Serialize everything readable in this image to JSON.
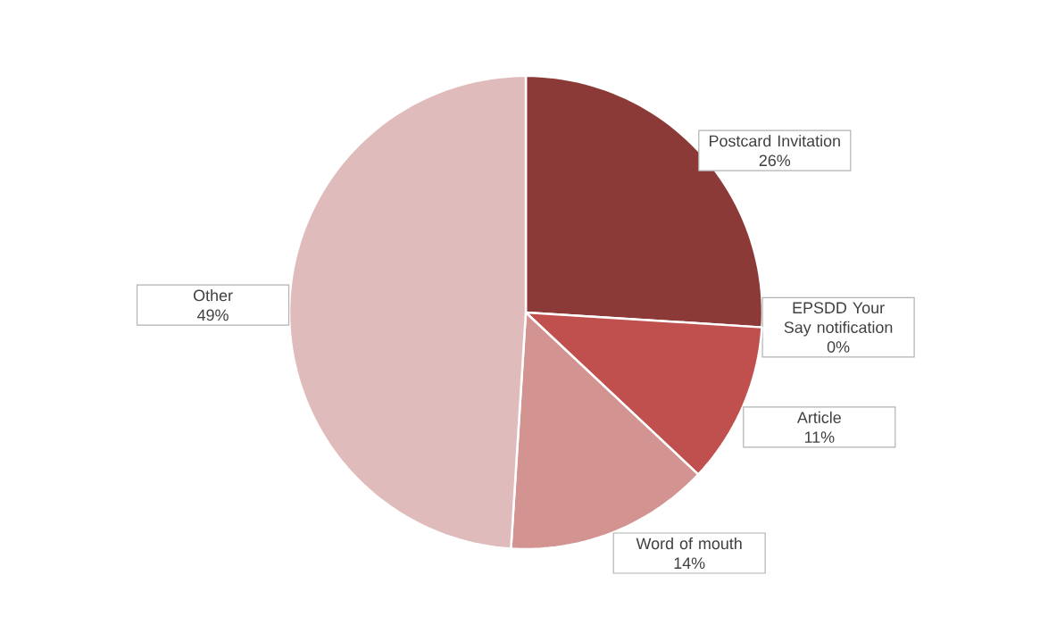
{
  "chart_data": {
    "type": "pie",
    "categories": [
      "Postcard Invitation",
      "EPSDD Your Say notification",
      "Article",
      "Word of mouth",
      "Other"
    ],
    "values": [
      26,
      0,
      11,
      14,
      49
    ],
    "value_labels": [
      "26%",
      "0%",
      "11%",
      "14%",
      "49%"
    ],
    "colors": [
      "#8b3a37",
      "#a94441",
      "#c0504d",
      "#d39391",
      "#e0bbbb"
    ]
  }
}
